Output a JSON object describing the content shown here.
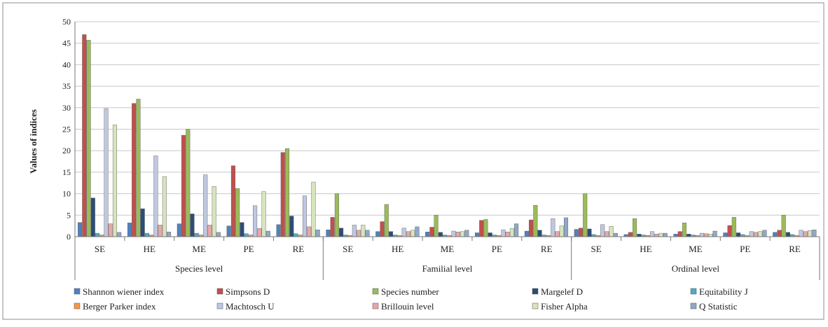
{
  "chart_data": {
    "type": "bar",
    "title": "",
    "ylabel": "Values of indices",
    "xlabel": "",
    "ylim": [
      0,
      50
    ],
    "yticks": [
      0,
      5,
      10,
      15,
      20,
      25,
      30,
      35,
      40,
      45,
      50
    ],
    "grid": true,
    "legend_position": "bottom",
    "groups": [
      {
        "label": "Species level",
        "sites": [
          "SE",
          "HE",
          "ME",
          "PE",
          "RE"
        ]
      },
      {
        "label": "Familial level",
        "sites": [
          "SE",
          "HE",
          "ME",
          "PE",
          "RE"
        ]
      },
      {
        "label": "Ordinal level",
        "sites": [
          "SE",
          "HE",
          "ME",
          "PE",
          "RE"
        ]
      }
    ],
    "series": [
      {
        "name": "Shannon wiener index",
        "color": "#4f81bd",
        "values": [
          3.3,
          3.2,
          3.0,
          2.5,
          2.8,
          1.6,
          1.2,
          1.1,
          0.9,
          1.3,
          1.7,
          0.5,
          0.6,
          0.9,
          1.0
        ]
      },
      {
        "name": "Simpsons D",
        "color": "#c0504d",
        "values": [
          47,
          31,
          23.6,
          16.5,
          19.6,
          4.5,
          3.5,
          2.2,
          3.8,
          3.9,
          2.0,
          1.0,
          1.2,
          2.6,
          1.5
        ]
      },
      {
        "name": "Species number",
        "color": "#9bbb59",
        "values": [
          45.7,
          32,
          25,
          11.2,
          20.5,
          10,
          7.5,
          5,
          4,
          7.3,
          10,
          4.2,
          3.2,
          4.5,
          5
        ]
      },
      {
        "name": "Margelef D",
        "color": "#2c4d75",
        "values": [
          9.0,
          6.5,
          5.3,
          3.3,
          4.8,
          2.0,
          1.2,
          1.0,
          0.9,
          1.5,
          1.8,
          0.6,
          0.6,
          0.9,
          1.0
        ]
      },
      {
        "name": "Equitability J",
        "color": "#4bacc6",
        "values": [
          0.8,
          0.8,
          0.8,
          0.7,
          0.7,
          0.4,
          0.4,
          0.4,
          0.4,
          0.4,
          0.5,
          0.4,
          0.4,
          0.5,
          0.5
        ]
      },
      {
        "name": "Berger Parker index",
        "color": "#f79646",
        "values": [
          0.4,
          0.4,
          0.4,
          0.4,
          0.4,
          0.3,
          0.3,
          0.3,
          0.3,
          0.3,
          0.3,
          0.3,
          0.3,
          0.3,
          0.3
        ]
      },
      {
        "name": "Machtosch U",
        "color": "#c0c8e0",
        "values": [
          29.8,
          18.8,
          14.4,
          7.2,
          9.5,
          2.7,
          2.0,
          1.3,
          1.6,
          4.2,
          2.8,
          1.2,
          0.8,
          1.2,
          1.5
        ]
      },
      {
        "name": "Brillouin level",
        "color": "#e6a8a8",
        "values": [
          3.0,
          2.7,
          2.7,
          1.9,
          2.3,
          1.5,
          1.2,
          1.1,
          1.1,
          1.2,
          1.2,
          0.6,
          0.7,
          1.0,
          1.2
        ]
      },
      {
        "name": "Fisher Alpha",
        "color": "#d7e4bd",
        "values": [
          26.0,
          14.0,
          11.7,
          10.5,
          12.7,
          2.7,
          1.5,
          1.2,
          1.9,
          2.5,
          2.4,
          0.8,
          0.6,
          1.2,
          1.4
        ]
      },
      {
        "name": "Q Statistic",
        "color": "#8fa8c8",
        "values": [
          1.0,
          1.1,
          1.0,
          1.3,
          1.6,
          1.5,
          2.3,
          1.5,
          3.0,
          4.4,
          0.8,
          0.8,
          1.3,
          1.5,
          1.6
        ]
      }
    ]
  }
}
